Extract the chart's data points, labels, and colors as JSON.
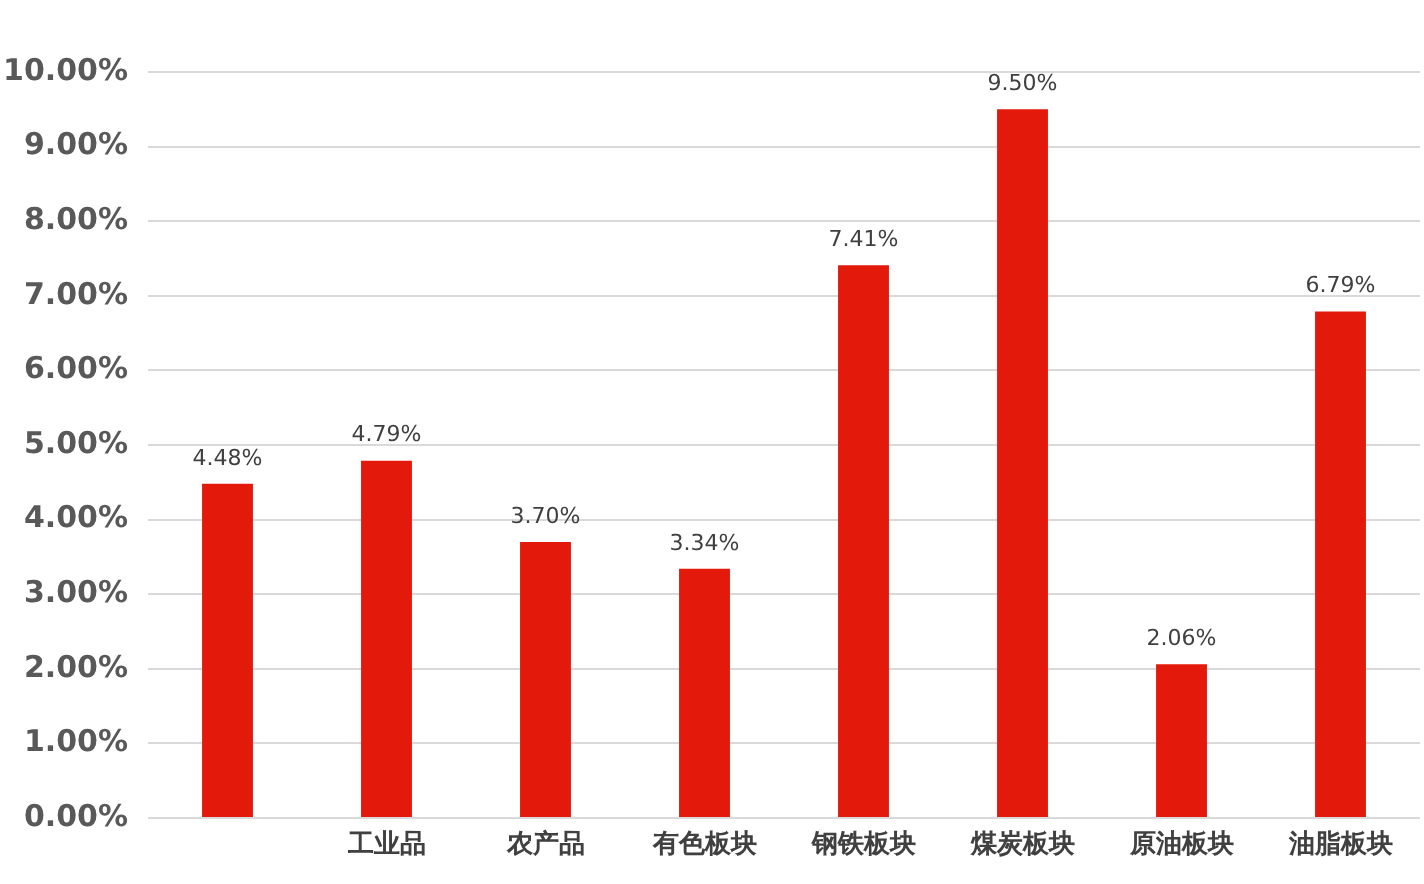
{
  "chart_data": {
    "type": "bar",
    "categories": [
      null,
      "工业品",
      "农产品",
      "有色板块",
      "钢铁板块",
      "煤炭板块",
      "原油板块",
      "油脂板块"
    ],
    "values": [
      4.48,
      4.79,
      3.7,
      3.34,
      7.41,
      9.5,
      2.06,
      6.79
    ],
    "value_labels": [
      "4.48%",
      "4.79%",
      "3.70%",
      "3.34%",
      "7.41%",
      "9.50%",
      "2.06%",
      "6.79%"
    ],
    "color": "#e3190b",
    "ylim": [
      0,
      10
    ],
    "yticks": [
      {
        "value": 0,
        "label": "0.00%"
      },
      {
        "value": 1,
        "label": "1.00%"
      },
      {
        "value": 2,
        "label": "2.00%"
      },
      {
        "value": 3,
        "label": "3.00%"
      },
      {
        "value": 4,
        "label": "4.00%"
      },
      {
        "value": 5,
        "label": "5.00%"
      },
      {
        "value": 6,
        "label": "6.00%"
      },
      {
        "value": 7,
        "label": "7.00%"
      },
      {
        "value": 8,
        "label": "8.00%"
      },
      {
        "value": 9,
        "label": "9.00%"
      },
      {
        "value": 10,
        "label": "10.00%"
      }
    ],
    "grid": "y"
  }
}
